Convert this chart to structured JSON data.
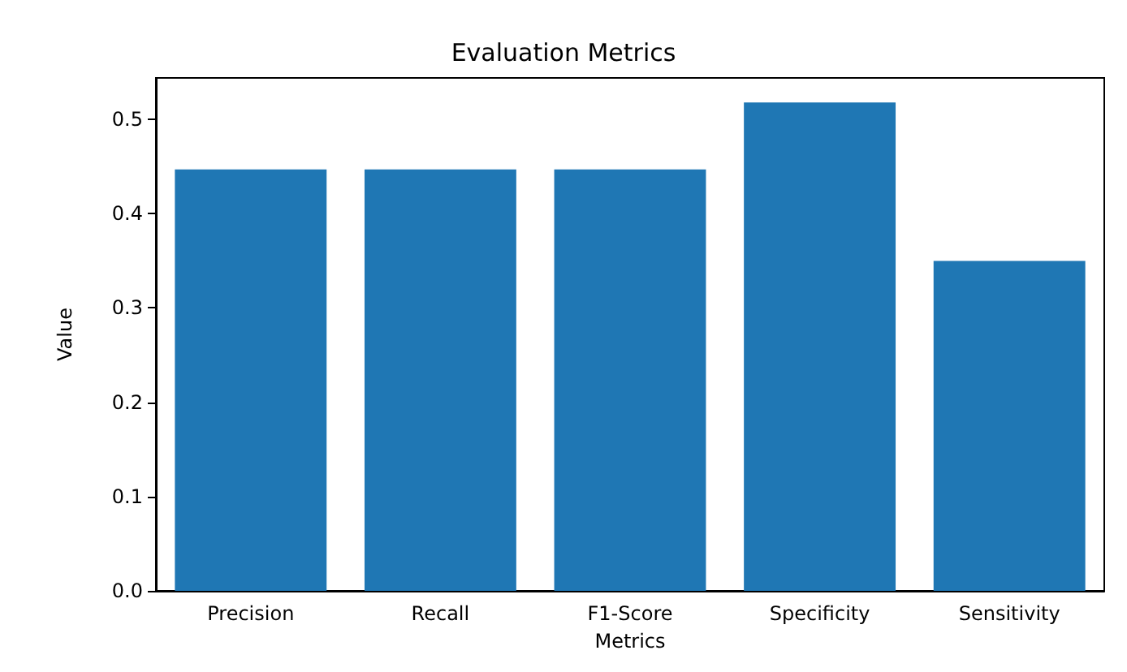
{
  "chart_data": {
    "type": "bar",
    "title": "Evaluation Metrics",
    "xlabel": "Metrics",
    "ylabel": "Value",
    "categories": [
      "Precision",
      "Recall",
      "F1-Score",
      "Specificity",
      "Sensitivity"
    ],
    "values": [
      0.447,
      0.447,
      0.447,
      0.518,
      0.35
    ],
    "color": "#1f77b4",
    "ylim": [
      0,
      0.544
    ],
    "yticks": [
      {
        "value": 0,
        "label": "0.0"
      },
      0.1,
      0.2,
      0.3,
      0.4,
      0.5
    ],
    "grid": false
  }
}
